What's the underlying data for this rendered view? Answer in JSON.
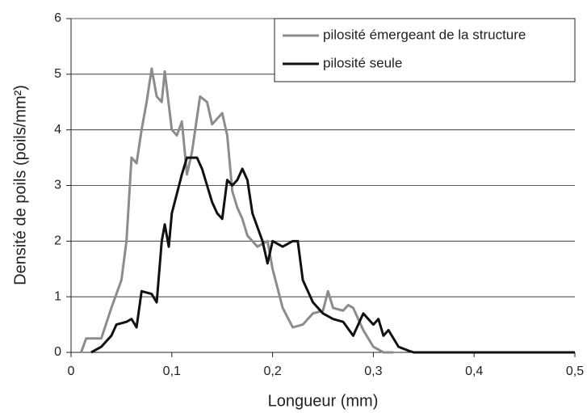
{
  "chart_data": {
    "type": "line",
    "xlabel": "Longueur (mm)",
    "ylabel": "Densité de poils (poils/mm²)",
    "xlim": [
      0,
      0.5
    ],
    "ylim": [
      0,
      6
    ],
    "xticks": [
      0,
      {
        "value": 0.1,
        "label": "0,1"
      },
      {
        "value": 0.2,
        "label": "0,2"
      },
      {
        "value": 0.3,
        "label": "0,3"
      },
      {
        "value": 0.4,
        "label": "0,4"
      },
      {
        "value": 0.5,
        "label": "0,5"
      }
    ],
    "yticks": [
      0,
      1,
      2,
      3,
      4,
      5,
      6
    ],
    "grid": true,
    "legend": "upper right",
    "series": [
      {
        "name": "pilosité émergeant de la structure",
        "color": "#8c8c8c",
        "x": [
          0.01,
          0.015,
          0.02,
          0.03,
          0.04,
          0.05,
          0.055,
          0.06,
          0.065,
          0.07,
          0.075,
          0.08,
          0.085,
          0.09,
          0.093,
          0.1,
          0.105,
          0.11,
          0.115,
          0.12,
          0.128,
          0.135,
          0.14,
          0.145,
          0.15,
          0.155,
          0.16,
          0.165,
          0.17,
          0.175,
          0.185,
          0.195,
          0.2,
          0.21,
          0.22,
          0.23,
          0.24,
          0.25,
          0.255,
          0.26,
          0.27,
          0.275,
          0.28,
          0.29,
          0.3,
          0.31,
          0.32
        ],
        "values": [
          0,
          0.25,
          0.25,
          0.25,
          0.8,
          1.3,
          2.0,
          3.5,
          3.4,
          4.0,
          4.5,
          5.1,
          4.6,
          4.5,
          5.05,
          4.0,
          3.9,
          4.15,
          3.2,
          3.6,
          4.6,
          4.5,
          4.1,
          4.2,
          4.3,
          3.9,
          2.9,
          2.6,
          2.4,
          2.1,
          1.9,
          2.0,
          1.5,
          0.8,
          0.45,
          0.5,
          0.7,
          0.75,
          1.1,
          0.8,
          0.75,
          0.85,
          0.8,
          0.4,
          0.1,
          0,
          0
        ]
      },
      {
        "name": "pilosité seule",
        "color": "#111111",
        "x": [
          0.02,
          0.03,
          0.04,
          0.045,
          0.055,
          0.06,
          0.065,
          0.07,
          0.08,
          0.085,
          0.09,
          0.093,
          0.097,
          0.1,
          0.11,
          0.115,
          0.125,
          0.13,
          0.135,
          0.14,
          0.145,
          0.15,
          0.155,
          0.16,
          0.165,
          0.17,
          0.175,
          0.18,
          0.19,
          0.195,
          0.2,
          0.21,
          0.22,
          0.225,
          0.23,
          0.235,
          0.24,
          0.25,
          0.26,
          0.27,
          0.28,
          0.29,
          0.3,
          0.305,
          0.31,
          0.315,
          0.325,
          0.335,
          0.34,
          0.5
        ],
        "values": [
          0,
          0.1,
          0.3,
          0.5,
          0.55,
          0.6,
          0.45,
          1.1,
          1.05,
          0.9,
          2.0,
          2.3,
          1.9,
          2.5,
          3.2,
          3.5,
          3.5,
          3.3,
          3.0,
          2.7,
          2.5,
          2.4,
          3.1,
          3.0,
          3.1,
          3.3,
          3.1,
          2.5,
          2.0,
          1.6,
          2.0,
          1.9,
          2.0,
          2.0,
          1.3,
          1.1,
          0.9,
          0.7,
          0.6,
          0.55,
          0.3,
          0.7,
          0.5,
          0.6,
          0.3,
          0.4,
          0.1,
          0.03,
          0,
          0
        ]
      }
    ]
  }
}
